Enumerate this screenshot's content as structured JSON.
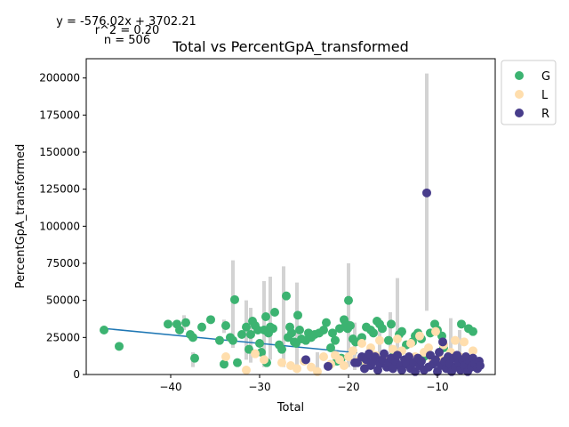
{
  "chart_data": {
    "type": "scatter",
    "title": "Total vs PercentGpA_transformed",
    "xlabel": "Total",
    "ylabel": "PercentGpA_transformed",
    "annotations": [
      "y = -576.02x + 3702.21",
      "r^2 = 0.20",
      "n = 506"
    ],
    "xlim": [
      -49.5,
      -3.5
    ],
    "ylim": [
      0,
      213000
    ],
    "x_ticks": [
      -40,
      -30,
      -20,
      -10
    ],
    "x_tick_labels": [
      "−40",
      "−30",
      "−20",
      "−10"
    ],
    "y_ticks": [
      0,
      25000,
      50000,
      75000,
      100000,
      125000,
      150000,
      175000,
      200000
    ],
    "y_tick_labels": [
      "0",
      "25000",
      "50000",
      "75000",
      "100000",
      "125000",
      "150000",
      "175000",
      "200000"
    ],
    "grid": false,
    "legend_position": "outside-upper-right",
    "legend": [
      {
        "name": "G",
        "color": "#3cb371"
      },
      {
        "name": "L",
        "color": "#ffdead"
      },
      {
        "name": "R",
        "color": "#483d8b"
      }
    ],
    "regression_line": {
      "slope": -576.02,
      "intercept": 3702.21,
      "x_range": [
        -47.5,
        -19
      ],
      "color": "#1f77b4"
    },
    "error_bars": [
      {
        "x": -38.5,
        "low": 30000,
        "high": 40000
      },
      {
        "x": -37.5,
        "low": 5000,
        "high": 15000
      },
      {
        "x": -34,
        "low": 28000,
        "high": 37000
      },
      {
        "x": -33,
        "low": 18000,
        "high": 77000
      },
      {
        "x": -31.5,
        "low": 10000,
        "high": 50000
      },
      {
        "x": -31,
        "low": 8000,
        "high": 45000
      },
      {
        "x": -29.5,
        "low": 5000,
        "high": 63000
      },
      {
        "x": -28.8,
        "low": 10000,
        "high": 66000
      },
      {
        "x": -27.3,
        "low": 5000,
        "high": 73000
      },
      {
        "x": -25.8,
        "low": 2000,
        "high": 62000
      },
      {
        "x": -23.5,
        "low": 2000,
        "high": 15000
      },
      {
        "x": -20,
        "low": 5000,
        "high": 75000
      },
      {
        "x": -19.3,
        "low": 3000,
        "high": 35000
      },
      {
        "x": -16.5,
        "low": 5000,
        "high": 38000
      },
      {
        "x": -15.3,
        "low": 5000,
        "high": 42000
      },
      {
        "x": -14.5,
        "low": 3000,
        "high": 65000
      },
      {
        "x": -11.2,
        "low": 43000,
        "high": 203000
      },
      {
        "x": -8.5,
        "low": 3000,
        "high": 38000
      },
      {
        "x": -7.5,
        "low": 2000,
        "high": 30000
      }
    ],
    "series": [
      {
        "name": "G",
        "color": "#3cb371",
        "points": [
          [
            -47.5,
            30000
          ],
          [
            -45.8,
            19000
          ],
          [
            -40.3,
            34000
          ],
          [
            -39.3,
            34000
          ],
          [
            -39,
            30000
          ],
          [
            -38.3,
            35000
          ],
          [
            -37.8,
            27000
          ],
          [
            -37.5,
            25000
          ],
          [
            -37.3,
            11000
          ],
          [
            -36.5,
            32000
          ],
          [
            -35.5,
            37000
          ],
          [
            -34.5,
            23000
          ],
          [
            -34,
            7000
          ],
          [
            -33.8,
            33000
          ],
          [
            -33.3,
            25000
          ],
          [
            -33,
            23000
          ],
          [
            -32.8,
            50500
          ],
          [
            -32.5,
            8000
          ],
          [
            -32,
            27000
          ],
          [
            -31.5,
            32000
          ],
          [
            -31.2,
            17000
          ],
          [
            -31,
            27000
          ],
          [
            -30.8,
            36000
          ],
          [
            -30.5,
            33000
          ],
          [
            -30.2,
            30000
          ],
          [
            -30,
            21000
          ],
          [
            -29.8,
            15000
          ],
          [
            -29.5,
            30000
          ],
          [
            -29.3,
            39000
          ],
          [
            -29.2,
            8000
          ],
          [
            -29,
            28000
          ],
          [
            -28.8,
            32000
          ],
          [
            -28.5,
            31000
          ],
          [
            -28.3,
            42000
          ],
          [
            -27.8,
            20000
          ],
          [
            -27.5,
            17000
          ],
          [
            -27,
            53000
          ],
          [
            -26.8,
            25000
          ],
          [
            -26.6,
            32000
          ],
          [
            -26.4,
            28000
          ],
          [
            -26.1,
            22000
          ],
          [
            -25.9,
            21000
          ],
          [
            -25.7,
            40000
          ],
          [
            -25.5,
            30000
          ],
          [
            -25.3,
            24000
          ],
          [
            -24.8,
            23000
          ],
          [
            -24.5,
            28000
          ],
          [
            -24.2,
            25000
          ],
          [
            -23.8,
            27000
          ],
          [
            -23.3,
            28000
          ],
          [
            -22.8,
            30000
          ],
          [
            -22.5,
            35000
          ],
          [
            -22,
            18000
          ],
          [
            -21.8,
            28000
          ],
          [
            -21.5,
            23000
          ],
          [
            -21.3,
            9000
          ],
          [
            -21,
            31000
          ],
          [
            -20.8,
            11000
          ],
          [
            -20.5,
            37000
          ],
          [
            -20.3,
            34000
          ],
          [
            -20.1,
            31000
          ],
          [
            -20,
            50000
          ],
          [
            -19.8,
            33000
          ],
          [
            -19.5,
            24000
          ],
          [
            -19.2,
            22000
          ],
          [
            -18.8,
            9000
          ],
          [
            -18.5,
            25000
          ],
          [
            -18,
            32000
          ],
          [
            -17.5,
            30000
          ],
          [
            -17.2,
            28000
          ],
          [
            -16.8,
            36000
          ],
          [
            -16.5,
            34000
          ],
          [
            -16.2,
            31000
          ],
          [
            -15.5,
            23000
          ],
          [
            -15.2,
            34000
          ],
          [
            -14.8,
            14000
          ],
          [
            -14.3,
            27000
          ],
          [
            -14,
            29000
          ],
          [
            -13.5,
            20000
          ],
          [
            -12.8,
            22000
          ],
          [
            -12.5,
            26000
          ],
          [
            -12.2,
            28000
          ],
          [
            -11.8,
            24000
          ],
          [
            -11.5,
            12000
          ],
          [
            -10.8,
            28000
          ],
          [
            -10.3,
            34000
          ],
          [
            -10,
            30000
          ],
          [
            -9.5,
            26000
          ],
          [
            -9.3,
            18000
          ],
          [
            -7.3,
            34000
          ],
          [
            -6.5,
            31000
          ],
          [
            -6,
            29000
          ]
        ]
      },
      {
        "name": "L",
        "color": "#ffdead",
        "points": [
          [
            -33.8,
            12000
          ],
          [
            -31.5,
            3000
          ],
          [
            -30.5,
            14000
          ],
          [
            -29.5,
            10000
          ],
          [
            -27.5,
            8000
          ],
          [
            -26.5,
            6000
          ],
          [
            -25.8,
            4000
          ],
          [
            -25,
            9000
          ],
          [
            -24.2,
            5000
          ],
          [
            -23.5,
            2000
          ],
          [
            -22.8,
            12000
          ],
          [
            -22,
            7000
          ],
          [
            -21.5,
            13000
          ],
          [
            -21,
            10000
          ],
          [
            -20.5,
            6000
          ],
          [
            -20,
            12000
          ],
          [
            -19.5,
            16000
          ],
          [
            -19,
            9000
          ],
          [
            -18.5,
            21000
          ],
          [
            -18,
            8000
          ],
          [
            -17.5,
            18000
          ],
          [
            -17,
            13000
          ],
          [
            -16.5,
            23000
          ],
          [
            -16,
            12000
          ],
          [
            -15.5,
            7000
          ],
          [
            -15,
            17000
          ],
          [
            -14.5,
            24000
          ],
          [
            -14,
            16000
          ],
          [
            -13.5,
            8000
          ],
          [
            -13,
            21000
          ],
          [
            -12.5,
            12000
          ],
          [
            -12,
            26000
          ],
          [
            -11.5,
            15000
          ],
          [
            -11,
            18000
          ],
          [
            -10.5,
            9000
          ],
          [
            -10.2,
            29000
          ],
          [
            -9.8,
            11000
          ],
          [
            -9.3,
            20000
          ],
          [
            -8.8,
            6000
          ],
          [
            -8.5,
            15000
          ],
          [
            -8,
            23000
          ],
          [
            -7.5,
            12000
          ],
          [
            -7,
            22000
          ],
          [
            -6.5,
            9000
          ],
          [
            -6,
            16000
          ],
          [
            -5.5,
            8000
          ]
        ]
      },
      {
        "name": "R",
        "color": "#483d8b",
        "points": [
          [
            -24.8,
            10000
          ],
          [
            -22.3,
            5500
          ],
          [
            -19.3,
            8000
          ],
          [
            -19,
            8000
          ],
          [
            -18.5,
            12000
          ],
          [
            -18.2,
            4000
          ],
          [
            -18,
            10000
          ],
          [
            -17.7,
            14000
          ],
          [
            -17.5,
            6000
          ],
          [
            -17.2,
            9000
          ],
          [
            -17,
            12000
          ],
          [
            -16.7,
            3000
          ],
          [
            -16.5,
            7000
          ],
          [
            -16.2,
            10000
          ],
          [
            -16,
            14000
          ],
          [
            -15.7,
            5000
          ],
          [
            -15.5,
            8000
          ],
          [
            -15.2,
            11000
          ],
          [
            -15,
            4000
          ],
          [
            -14.7,
            9000
          ],
          [
            -14.5,
            13000
          ],
          [
            -14.2,
            6000
          ],
          [
            -14,
            3000
          ],
          [
            -13.7,
            10000
          ],
          [
            -13.5,
            7000
          ],
          [
            -13.2,
            12000
          ],
          [
            -13,
            4000
          ],
          [
            -12.7,
            8000
          ],
          [
            -12.5,
            2000
          ],
          [
            -12.2,
            11000
          ],
          [
            -12,
            6000
          ],
          [
            -11.8,
            9000
          ],
          [
            -11.5,
            3000
          ],
          [
            -11.2,
            122500
          ],
          [
            -11,
            5000
          ],
          [
            -10.8,
            13000
          ],
          [
            -10.5,
            7000
          ],
          [
            -10.2,
            10000
          ],
          [
            -10,
            2000
          ],
          [
            -9.8,
            15000
          ],
          [
            -9.6,
            6000
          ],
          [
            -9.4,
            22000
          ],
          [
            -9.2,
            9000
          ],
          [
            -9,
            4000
          ],
          [
            -8.8,
            12000
          ],
          [
            -8.6,
            7000
          ],
          [
            -8.4,
            2000
          ],
          [
            -8.2,
            11000
          ],
          [
            -8,
            5000
          ],
          [
            -7.8,
            13000
          ],
          [
            -7.6,
            8000
          ],
          [
            -7.4,
            3000
          ],
          [
            -7.2,
            10000
          ],
          [
            -7,
            6000
          ],
          [
            -6.8,
            12000
          ],
          [
            -6.6,
            2000
          ],
          [
            -6.4,
            9000
          ],
          [
            -6.2,
            5000
          ],
          [
            -6,
            11000
          ],
          [
            -5.8,
            7000
          ],
          [
            -5.5,
            4000
          ],
          [
            -5.3,
            9000
          ],
          [
            -5.2,
            6000
          ]
        ]
      }
    ]
  }
}
